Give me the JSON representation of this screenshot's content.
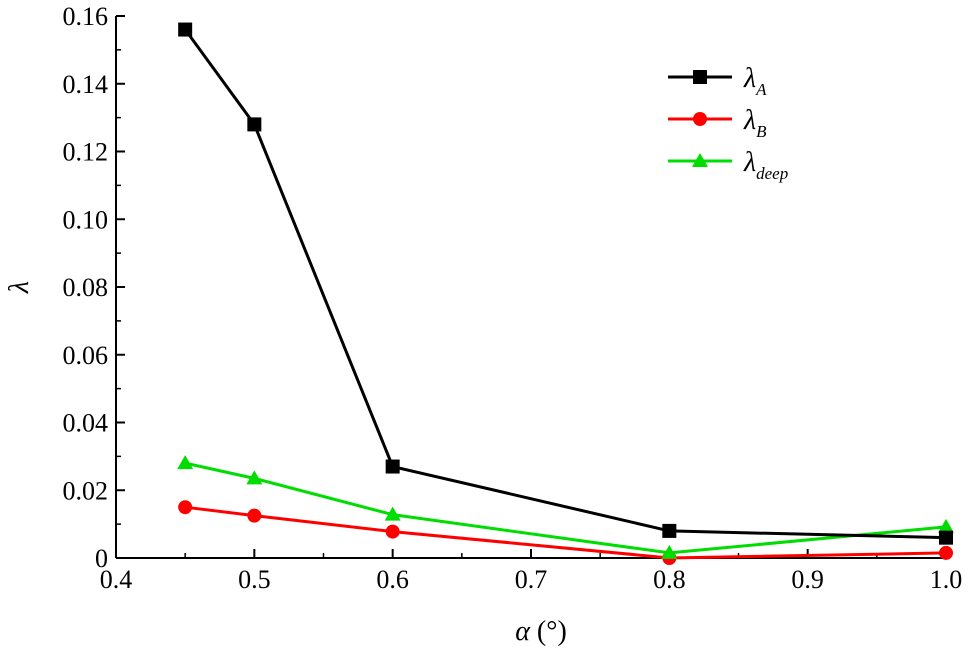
{
  "chart_data": {
    "type": "line",
    "xlabel": {
      "symbol": "α",
      "unit": " (°)"
    },
    "ylabel": "λ",
    "xlim": [
      0.4,
      1.0
    ],
    "ylim": [
      0,
      0.16
    ],
    "xticks": [
      "0.4",
      "0.5",
      "0.6",
      "0.7",
      "0.8",
      "0.9",
      "1.0"
    ],
    "yticks": [
      "0",
      "0.02",
      "0.04",
      "0.06",
      "0.08",
      "0.10",
      "0.12",
      "0.14",
      "0.16"
    ],
    "grid": false,
    "legend_position": "top-right",
    "x": [
      0.45,
      0.5,
      0.6,
      0.8,
      1.0
    ],
    "series": [
      {
        "name": "λ",
        "subscript": "A",
        "marker": "square",
        "color": "#000000",
        "values": [
          0.156,
          0.128,
          0.027,
          0.008,
          0.006
        ]
      },
      {
        "name": "λ",
        "subscript": "B",
        "marker": "circle",
        "color": "#ff0000",
        "values": [
          0.015,
          0.0125,
          0.0078,
          0.0,
          0.0015
        ]
      },
      {
        "name": "λ",
        "subscript": "deep",
        "marker": "triangle",
        "color": "#00dd00",
        "values": [
          0.028,
          0.0235,
          0.0128,
          0.0015,
          0.0092
        ]
      }
    ]
  }
}
